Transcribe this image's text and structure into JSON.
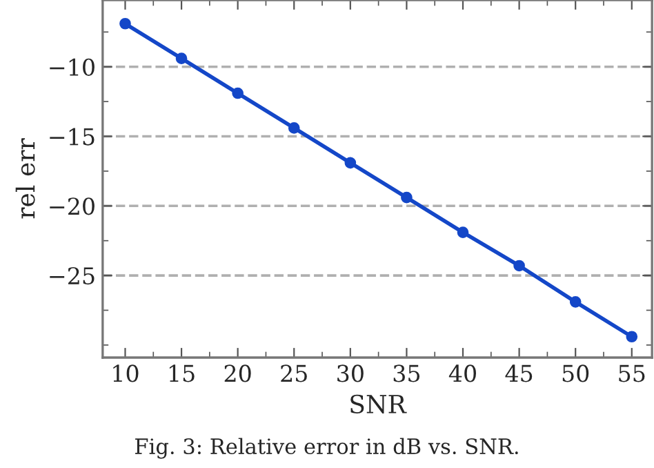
{
  "chart_data": {
    "type": "line",
    "xlabel": "SNR",
    "ylabel": "rel err",
    "x": [
      10,
      15,
      20,
      25,
      30,
      35,
      40,
      45,
      50,
      55
    ],
    "series": [
      {
        "color": "#1447c8",
        "values": [
          -6.9,
          -9.4,
          -11.9,
          -14.4,
          -16.9,
          -19.4,
          -21.9,
          -24.3,
          -26.9,
          -29.4
        ]
      }
    ],
    "xlim": [
      8,
      56.8
    ],
    "ylim": [
      -30.9,
      -5.2
    ],
    "xticks": [
      10,
      15,
      20,
      25,
      30,
      35,
      40,
      45,
      50,
      55
    ],
    "yticks": [
      -10,
      -15,
      -20,
      -25
    ],
    "grid": "y",
    "marker": "circle",
    "line_style": "solid",
    "annotations": [
      "Fig. 3: Relative error in dB vs. SNR."
    ]
  }
}
